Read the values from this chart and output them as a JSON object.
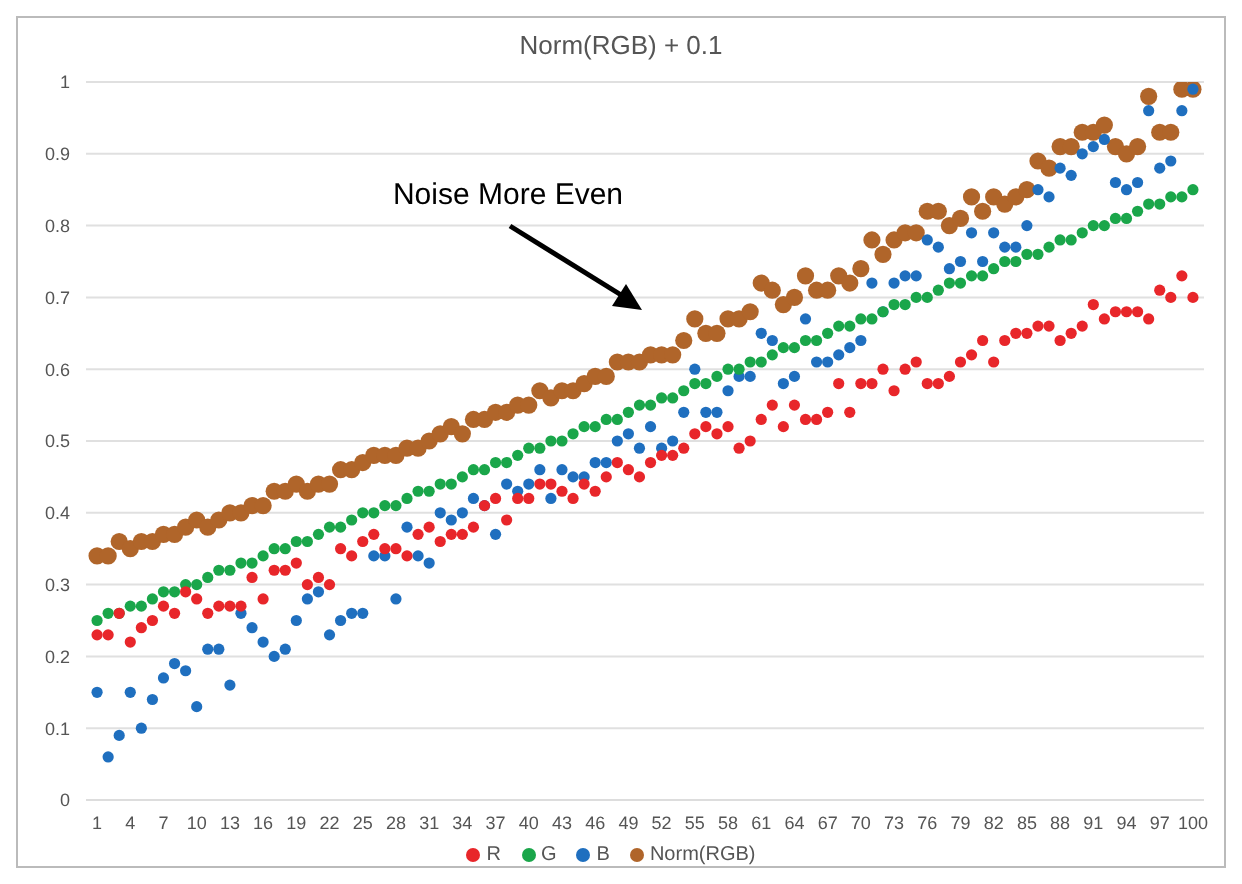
{
  "chart_data": {
    "type": "scatter",
    "title": "Norm(RGB) + 0.1",
    "x": [
      1,
      2,
      3,
      4,
      5,
      6,
      7,
      8,
      9,
      10,
      11,
      12,
      13,
      14,
      15,
      16,
      17,
      18,
      19,
      20,
      21,
      22,
      23,
      24,
      25,
      26,
      27,
      28,
      29,
      30,
      31,
      32,
      33,
      34,
      35,
      36,
      37,
      38,
      39,
      40,
      41,
      42,
      43,
      44,
      45,
      46,
      47,
      48,
      49,
      50,
      51,
      52,
      53,
      54,
      55,
      56,
      57,
      58,
      59,
      60,
      61,
      62,
      63,
      64,
      65,
      66,
      67,
      68,
      69,
      70,
      71,
      72,
      73,
      74,
      75,
      76,
      77,
      78,
      79,
      80,
      81,
      82,
      83,
      84,
      85,
      86,
      87,
      88,
      89,
      90,
      91,
      92,
      93,
      94,
      95,
      96,
      97,
      98,
      99,
      100
    ],
    "xlim": [
      0,
      101
    ],
    "xticks": [
      1,
      4,
      7,
      10,
      13,
      16,
      19,
      22,
      25,
      28,
      31,
      34,
      37,
      40,
      43,
      46,
      49,
      52,
      55,
      58,
      61,
      64,
      67,
      70,
      73,
      76,
      79,
      82,
      85,
      88,
      91,
      94,
      97,
      100
    ],
    "ylim": [
      0,
      1
    ],
    "yticks": [
      0,
      0.1,
      0.2,
      0.3,
      0.4,
      0.5,
      0.6,
      0.7,
      0.8,
      0.9,
      1
    ],
    "grid": "y",
    "legend": "bottom",
    "marker": "circle",
    "annotations": [
      "Noise More Even"
    ],
    "series": [
      {
        "name": "R",
        "color": "#e8262a",
        "values": [
          0.23,
          0.23,
          0.26,
          0.22,
          0.24,
          0.25,
          0.27,
          0.26,
          0.29,
          0.28,
          0.26,
          0.27,
          0.27,
          0.27,
          0.31,
          0.28,
          0.32,
          0.32,
          0.33,
          0.3,
          0.31,
          0.3,
          0.35,
          0.34,
          0.36,
          0.37,
          0.35,
          0.35,
          0.34,
          0.37,
          0.38,
          0.36,
          0.37,
          0.37,
          0.38,
          0.41,
          0.42,
          0.39,
          0.42,
          0.42,
          0.44,
          0.44,
          0.43,
          0.42,
          0.44,
          0.43,
          0.45,
          0.47,
          0.46,
          0.45,
          0.47,
          0.48,
          0.48,
          0.49,
          0.51,
          0.52,
          0.51,
          0.52,
          0.49,
          0.5,
          0.53,
          0.55,
          0.52,
          0.55,
          0.53,
          0.53,
          0.54,
          0.58,
          0.54,
          0.58,
          0.58,
          0.6,
          0.57,
          0.6,
          0.61,
          0.58,
          0.58,
          0.59,
          0.61,
          0.62,
          0.64,
          0.61,
          0.64,
          0.65,
          0.65,
          0.66,
          0.66,
          0.64,
          0.65,
          0.66,
          0.69,
          0.67,
          0.68,
          0.68,
          0.68,
          0.67,
          0.71,
          0.7,
          0.73,
          0.7
        ]
      },
      {
        "name": "G",
        "color": "#1aa64a",
        "values": [
          0.25,
          0.26,
          0.26,
          0.27,
          0.27,
          0.28,
          0.29,
          0.29,
          0.3,
          0.3,
          0.31,
          0.32,
          0.32,
          0.33,
          0.33,
          0.34,
          0.35,
          0.35,
          0.36,
          0.36,
          0.37,
          0.38,
          0.38,
          0.39,
          0.4,
          0.4,
          0.41,
          0.41,
          0.42,
          0.43,
          0.43,
          0.44,
          0.44,
          0.45,
          0.46,
          0.46,
          0.47,
          0.47,
          0.48,
          0.49,
          0.49,
          0.5,
          0.5,
          0.51,
          0.52,
          0.52,
          0.53,
          0.53,
          0.54,
          0.55,
          0.55,
          0.56,
          0.56,
          0.57,
          0.58,
          0.58,
          0.59,
          0.6,
          0.6,
          0.61,
          0.61,
          0.62,
          0.63,
          0.63,
          0.64,
          0.64,
          0.65,
          0.66,
          0.66,
          0.67,
          0.67,
          0.68,
          0.69,
          0.69,
          0.7,
          0.7,
          0.71,
          0.72,
          0.72,
          0.73,
          0.73,
          0.74,
          0.75,
          0.75,
          0.76,
          0.76,
          0.77,
          0.78,
          0.78,
          0.79,
          0.8,
          0.8,
          0.81,
          0.81,
          0.82,
          0.83,
          0.83,
          0.84,
          0.84,
          0.85
        ]
      },
      {
        "name": "B",
        "color": "#1f6fbf",
        "values": [
          0.15,
          0.06,
          0.09,
          0.15,
          0.1,
          0.14,
          0.17,
          0.19,
          0.18,
          0.13,
          0.21,
          0.21,
          0.16,
          0.26,
          0.24,
          0.22,
          0.2,
          0.21,
          0.25,
          0.28,
          0.29,
          0.23,
          0.25,
          0.26,
          0.26,
          0.34,
          0.34,
          0.28,
          0.38,
          0.34,
          0.33,
          0.4,
          0.39,
          0.4,
          0.42,
          0.41,
          0.37,
          0.44,
          0.43,
          0.44,
          0.46,
          0.42,
          0.46,
          0.45,
          0.45,
          0.47,
          0.47,
          0.5,
          0.51,
          0.49,
          0.52,
          0.49,
          0.5,
          0.54,
          0.6,
          0.54,
          0.54,
          0.57,
          0.59,
          0.59,
          0.65,
          0.64,
          0.58,
          0.59,
          0.67,
          0.61,
          0.61,
          0.62,
          0.63,
          0.64,
          0.72,
          0.68,
          0.72,
          0.73,
          0.73,
          0.78,
          0.77,
          0.74,
          0.75,
          0.79,
          0.75,
          0.79,
          0.77,
          0.77,
          0.8,
          0.85,
          0.84,
          0.88,
          0.87,
          0.9,
          0.91,
          0.92,
          0.86,
          0.85,
          0.86,
          0.96,
          0.88,
          0.89,
          0.96,
          0.99
        ]
      },
      {
        "name": "Norm(RGB)",
        "color": "#b0652a",
        "values": [
          0.34,
          0.34,
          0.36,
          0.35,
          0.36,
          0.36,
          0.37,
          0.37,
          0.38,
          0.39,
          0.38,
          0.39,
          0.4,
          0.4,
          0.41,
          0.41,
          0.43,
          0.43,
          0.44,
          0.43,
          0.44,
          0.44,
          0.46,
          0.46,
          0.47,
          0.48,
          0.48,
          0.48,
          0.49,
          0.49,
          0.5,
          0.51,
          0.52,
          0.51,
          0.53,
          0.53,
          0.54,
          0.54,
          0.55,
          0.55,
          0.57,
          0.56,
          0.57,
          0.57,
          0.58,
          0.59,
          0.59,
          0.61,
          0.61,
          0.61,
          0.62,
          0.62,
          0.62,
          0.64,
          0.67,
          0.65,
          0.65,
          0.67,
          0.67,
          0.68,
          0.72,
          0.71,
          0.69,
          0.7,
          0.73,
          0.71,
          0.71,
          0.73,
          0.72,
          0.74,
          0.78,
          0.76,
          0.78,
          0.79,
          0.79,
          0.82,
          0.82,
          0.8,
          0.81,
          0.84,
          0.82,
          0.84,
          0.83,
          0.84,
          0.85,
          0.89,
          0.88,
          0.91,
          0.91,
          0.93,
          0.93,
          0.94,
          0.91,
          0.9,
          0.91,
          0.98,
          0.93,
          0.93,
          0.99,
          0.99
        ]
      }
    ]
  }
}
